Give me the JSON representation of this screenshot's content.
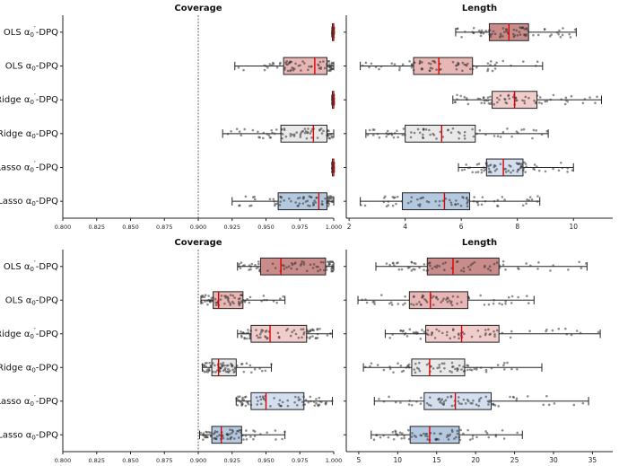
{
  "panel_colors": {
    "OLS_a0p": "#c98c8a",
    "OLS_a0": "#e8b6b4",
    "Ridge_a0p": "#f0cccb",
    "Ridge_a0": "#e9e9e9",
    "Lasso_a0p": "#d3dfee",
    "Lasso_a0": "#b4c8df"
  },
  "chart_data": [
    {
      "type": "box",
      "title": "Coverage",
      "orientation": "horizontal",
      "categories": [
        "OLS α₀′-DPQ",
        "OLS α₀-DPQ",
        "Ridge α₀′-DPQ",
        "Ridge α₀-DPQ",
        "Lasso α₀′-DPQ",
        "Lasso α₀-DPQ"
      ],
      "xlim": [
        0.8,
        1.0
      ],
      "xticks": [
        0.8,
        0.825,
        0.85,
        0.875,
        0.9,
        0.925,
        0.95,
        0.975,
        1.0
      ],
      "xtick_labels": [
        "0.800",
        "0.825",
        "0.850",
        "0.875",
        "0.900",
        "0.925",
        "0.950",
        "0.975",
        "1.000"
      ],
      "reference_line": 0.9,
      "boxes": [
        {
          "whislo": 0.999,
          "q1": 0.999,
          "med": 1.0,
          "q3": 1.0,
          "whishi": 1.0
        },
        {
          "whislo": 0.927,
          "q1": 0.963,
          "med": 0.986,
          "q3": 0.995,
          "whishi": 1.0
        },
        {
          "whislo": 0.999,
          "q1": 0.999,
          "med": 1.0,
          "q3": 1.0,
          "whishi": 1.0
        },
        {
          "whislo": 0.918,
          "q1": 0.961,
          "med": 0.985,
          "q3": 0.995,
          "whishi": 1.0
        },
        {
          "whislo": 0.999,
          "q1": 0.999,
          "med": 1.0,
          "q3": 1.0,
          "whishi": 1.0
        },
        {
          "whislo": 0.925,
          "q1": 0.959,
          "med": 0.989,
          "q3": 0.995,
          "whishi": 1.0
        }
      ]
    },
    {
      "type": "box",
      "title": "Length",
      "orientation": "horizontal",
      "categories": [
        "OLS α₀′-DPQ",
        "OLS α₀-DPQ",
        "Ridge α₀′-DPQ",
        "Ridge α₀-DPQ",
        "Lasso α₀′-DPQ",
        "Lasso α₀-DPQ"
      ],
      "xlim": [
        1.9,
        11.4
      ],
      "xticks": [
        2,
        4,
        6,
        8,
        10
      ],
      "xtick_labels": [
        "2",
        "4",
        "6",
        "8",
        "10"
      ],
      "boxes": [
        {
          "whislo": 5.8,
          "q1": 7.0,
          "med": 7.7,
          "q3": 8.4,
          "whishi": 10.1
        },
        {
          "whislo": 2.4,
          "q1": 4.3,
          "med": 5.2,
          "q3": 6.4,
          "whishi": 8.9
        },
        {
          "whislo": 5.7,
          "q1": 7.1,
          "med": 7.9,
          "q3": 8.7,
          "whishi": 11.0
        },
        {
          "whislo": 2.6,
          "q1": 4.0,
          "med": 5.3,
          "q3": 6.5,
          "whishi": 9.1
        },
        {
          "whislo": 5.9,
          "q1": 6.9,
          "med": 7.5,
          "q3": 8.2,
          "whishi": 10.0
        },
        {
          "whislo": 2.4,
          "q1": 3.9,
          "med": 5.4,
          "q3": 6.3,
          "whishi": 8.8
        }
      ]
    },
    {
      "type": "box",
      "title": "Coverage",
      "orientation": "horizontal",
      "categories": [
        "OLS α₀′-DPQ",
        "OLS α₀-DPQ",
        "Ridge α₀′-DPQ",
        "Ridge α₀-DPQ",
        "Lasso α₀′-DPQ",
        "Lasso α₀-DPQ"
      ],
      "xlim": [
        0.8,
        1.0
      ],
      "xticks": [
        0.8,
        0.825,
        0.85,
        0.875,
        0.9,
        0.925,
        0.95,
        0.975,
        1.0
      ],
      "xtick_labels": [
        "0.800",
        "0.825",
        "0.850",
        "0.875",
        "0.900",
        "0.925",
        "0.950",
        "0.975",
        "1.000"
      ],
      "reference_line": 0.9,
      "boxes": [
        {
          "whislo": 0.929,
          "q1": 0.946,
          "med": 0.961,
          "q3": 0.994,
          "whishi": 1.0
        },
        {
          "whislo": 0.902,
          "q1": 0.911,
          "med": 0.915,
          "q3": 0.933,
          "whishi": 0.964
        },
        {
          "whislo": 0.929,
          "q1": 0.939,
          "med": 0.953,
          "q3": 0.98,
          "whishi": 0.999
        },
        {
          "whislo": 0.903,
          "q1": 0.91,
          "med": 0.915,
          "q3": 0.928,
          "whishi": 0.954
        },
        {
          "whislo": 0.928,
          "q1": 0.939,
          "med": 0.95,
          "q3": 0.978,
          "whishi": 0.999
        },
        {
          "whislo": 0.901,
          "q1": 0.91,
          "med": 0.917,
          "q3": 0.932,
          "whishi": 0.964
        }
      ]
    },
    {
      "type": "box",
      "title": "Length",
      "orientation": "horizontal",
      "categories": [
        "OLS α₀′-DPQ",
        "OLS α₀-DPQ",
        "Ridge α₀′-DPQ",
        "Ridge α₀-DPQ",
        "Lasso α₀′-DPQ",
        "Lasso α₀-DPQ"
      ],
      "xlim": [
        3.4,
        37.6
      ],
      "xticks": [
        5,
        10,
        15,
        20,
        25,
        30,
        35
      ],
      "xtick_labels": [
        "5",
        "10",
        "15",
        "20",
        "25",
        "30",
        "35"
      ],
      "boxes": [
        {
          "whislo": 7.2,
          "q1": 13.8,
          "med": 17.1,
          "q3": 23.0,
          "whishi": 34.3
        },
        {
          "whislo": 4.9,
          "q1": 11.5,
          "med": 14.2,
          "q3": 19.0,
          "whishi": 27.5
        },
        {
          "whislo": 8.4,
          "q1": 13.6,
          "med": 18.2,
          "q3": 23.0,
          "whishi": 36.0
        },
        {
          "whislo": 5.6,
          "q1": 11.8,
          "med": 14.1,
          "q3": 18.6,
          "whishi": 28.5
        },
        {
          "whislo": 7.0,
          "q1": 13.4,
          "med": 17.4,
          "q3": 22.0,
          "whishi": 34.5
        },
        {
          "whislo": 6.6,
          "q1": 11.6,
          "med": 14.1,
          "q3": 17.9,
          "whishi": 26.0
        }
      ]
    }
  ]
}
